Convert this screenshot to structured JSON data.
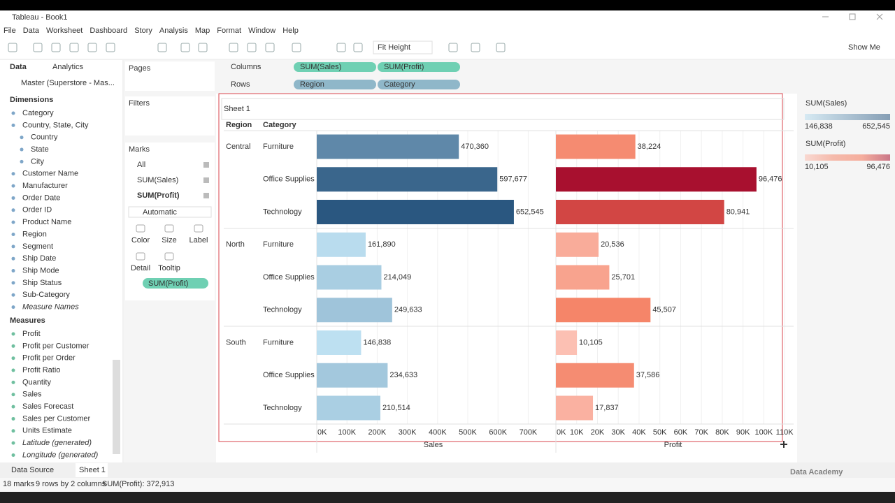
{
  "window": {
    "title": "Tableau - Book1"
  },
  "menu": [
    "File",
    "Data",
    "Worksheet",
    "Dashboard",
    "Story",
    "Analysis",
    "Map",
    "Format",
    "Window",
    "Help"
  ],
  "toolbar": {
    "fit": "Fit Height",
    "show_me": "Show Me"
  },
  "data_pane": {
    "tabs": [
      "Data",
      "Analytics"
    ],
    "source": "Master (Superstore - Mas...",
    "dimensions_header": "Dimensions",
    "dimensions": [
      {
        "name": "Category"
      },
      {
        "name": "Country, State, City"
      },
      {
        "name": "Country",
        "indent": 1
      },
      {
        "name": "State",
        "indent": 1
      },
      {
        "name": "City",
        "indent": 1
      },
      {
        "name": "Customer Name"
      },
      {
        "name": "Manufacturer"
      },
      {
        "name": "Order Date"
      },
      {
        "name": "Order ID"
      },
      {
        "name": "Product Name"
      },
      {
        "name": "Region"
      },
      {
        "name": "Segment"
      },
      {
        "name": "Ship Date"
      },
      {
        "name": "Ship Mode"
      },
      {
        "name": "Ship Status"
      },
      {
        "name": "Sub-Category"
      },
      {
        "name": "Measure Names",
        "italic": true
      }
    ],
    "measures_header": "Measures",
    "measures": [
      {
        "name": "Profit"
      },
      {
        "name": "Profit per Customer"
      },
      {
        "name": "Profit per Order"
      },
      {
        "name": "Profit Ratio"
      },
      {
        "name": "Quantity"
      },
      {
        "name": "Sales"
      },
      {
        "name": "Sales Forecast"
      },
      {
        "name": "Sales per Customer"
      },
      {
        "name": "Units Estimate"
      },
      {
        "name": "Latitude (generated)",
        "italic": true
      },
      {
        "name": "Longitude (generated)",
        "italic": true
      }
    ]
  },
  "shelves": {
    "pages": "Pages",
    "filters": "Filters",
    "marks": "Marks",
    "marks_cards": [
      "All",
      "SUM(Sales)",
      "SUM(Profit)"
    ],
    "mark_type": "Automatic",
    "buttons": [
      "Color",
      "Size",
      "Label",
      "Detail",
      "Tooltip"
    ],
    "color_pill": "SUM(Profit)",
    "columns_label": "Columns",
    "columns": [
      "SUM(Sales)",
      "SUM(Profit)"
    ],
    "rows_label": "Rows",
    "rows": [
      "Region",
      "Category"
    ]
  },
  "chart_data": {
    "type": "bar",
    "title": "Sheet 1",
    "row_headers": [
      "Region",
      "Category"
    ],
    "regions": [
      "Central",
      "North",
      "South"
    ],
    "categories": [
      "Furniture",
      "Office Supplies",
      "Technology",
      "Furniture",
      "Office Supplies",
      "Technology",
      "Furniture",
      "Office Supplies",
      "Technology"
    ],
    "series": [
      {
        "name": "Sales",
        "values": [
          470360,
          597677,
          652545,
          161890,
          214049,
          249633,
          146838,
          234633,
          210514
        ],
        "value_labels": [
          "470,360",
          "597,677",
          "652,545",
          "161,890",
          "214,049",
          "249,633",
          "146,838",
          "234,633",
          "210,514"
        ],
        "xlim": [
          0,
          780000
        ],
        "xticks": [
          {
            "value": 0,
            "label": "0K"
          },
          {
            "value": 100000,
            "label": "100K"
          },
          {
            "value": 200000,
            "label": "200K"
          },
          {
            "value": 300000,
            "label": "300K"
          },
          {
            "value": 400000,
            "label": "400K"
          },
          {
            "value": 500000,
            "label": "500K"
          },
          {
            "value": 600000,
            "label": "600K"
          },
          {
            "value": 700000,
            "label": "700K"
          }
        ]
      },
      {
        "name": "Profit",
        "values": [
          38224,
          96476,
          80941,
          20536,
          25701,
          45507,
          10105,
          37586,
          17837
        ],
        "value_labels": [
          "38,224",
          "96,476",
          "80,941",
          "20,536",
          "25,701",
          "45,507",
          "10,105",
          "37,586",
          "17,837"
        ],
        "xlim": [
          0,
          114000
        ],
        "xticks": [
          {
            "value": 0,
            "label": "0K"
          },
          {
            "value": 10000,
            "label": "10K"
          },
          {
            "value": 20000,
            "label": "20K"
          },
          {
            "value": 30000,
            "label": "30K"
          },
          {
            "value": 40000,
            "label": "40K"
          },
          {
            "value": 50000,
            "label": "50K"
          },
          {
            "value": 60000,
            "label": "60K"
          },
          {
            "value": 70000,
            "label": "70K"
          },
          {
            "value": 80000,
            "label": "80K"
          },
          {
            "value": 90000,
            "label": "90K"
          },
          {
            "value": 100000,
            "label": "100K"
          },
          {
            "value": 110000,
            "label": "110K"
          }
        ]
      }
    ],
    "grid": true,
    "legends": [
      {
        "title": "SUM(Sales)",
        "range": [
          {
            "value": 146838,
            "label": "146,838"
          },
          {
            "value": 652545,
            "label": "652,545"
          }
        ],
        "colors": [
          "#bde0f1",
          "#2a5780"
        ]
      },
      {
        "title": "SUM(Profit)",
        "range": [
          {
            "value": 10105,
            "label": "10,105"
          },
          {
            "value": 96476,
            "label": "96,476"
          }
        ],
        "colors": [
          "#fcc0b3",
          "#f58a6f",
          "#f57456",
          "#a8102f"
        ]
      }
    ]
  },
  "tabs": [
    "Data Source",
    "Sheet 1"
  ],
  "status": [
    "18 marks",
    "9 rows by 2 columns",
    "SUM(Profit): 372,913"
  ],
  "watermark": "Data Academy"
}
